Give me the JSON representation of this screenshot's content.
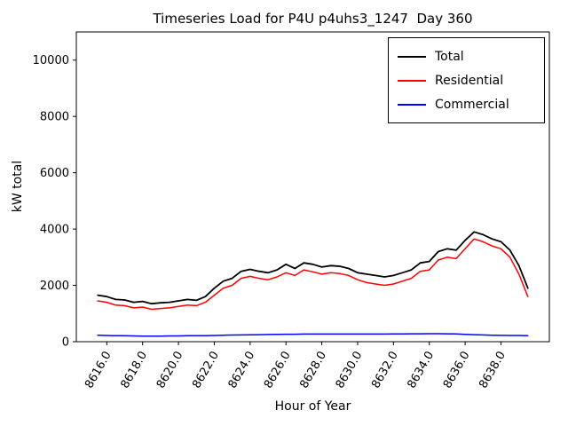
{
  "title": "Timeseries Load for P4U p4uhs3_1247  Day 360",
  "axes": {
    "xlabel": "Hour of Year",
    "ylabel": "kW total"
  },
  "legend": {
    "position": "upper right",
    "entries": [
      {
        "label": "Total",
        "color": "#000000"
      },
      {
        "label": "Residential",
        "color": "#ff0000"
      },
      {
        "label": "Commercial",
        "color": "#0000ff"
      }
    ]
  },
  "chart_data": {
    "type": "line",
    "title": "Timeseries Load for P4U p4uhs3_1247  Day 360",
    "xlabel": "Hour of Year",
    "ylabel": "kW total",
    "grid": false,
    "legend_position": "upper right",
    "xlim": [
      8614.3,
      8640.7
    ],
    "ylim": [
      0,
      11000
    ],
    "xticks": [
      8616,
      8618,
      8620,
      8622,
      8624,
      8626,
      8628,
      8630,
      8632,
      8634,
      8636,
      8638
    ],
    "xtick_labels": [
      "8616.0",
      "8618.0",
      "8620.0",
      "8622.0",
      "8624.0",
      "8626.0",
      "8628.0",
      "8630.0",
      "8632.0",
      "8634.0",
      "8636.0",
      "8638.0"
    ],
    "yticks": [
      0,
      2000,
      4000,
      6000,
      8000,
      10000
    ],
    "ytick_labels": [
      "0",
      "2000",
      "4000",
      "6000",
      "8000",
      "10000"
    ],
    "x": [
      8615.5,
      8616.0,
      8616.5,
      8617.0,
      8617.5,
      8618.0,
      8618.5,
      8619.0,
      8619.5,
      8620.0,
      8620.5,
      8621.0,
      8621.5,
      8622.0,
      8622.5,
      8623.0,
      8623.5,
      8624.0,
      8624.5,
      8625.0,
      8625.5,
      8626.0,
      8626.5,
      8627.0,
      8627.5,
      8628.0,
      8628.5,
      8629.0,
      8629.5,
      8630.0,
      8630.5,
      8631.0,
      8631.5,
      8632.0,
      8632.5,
      8633.0,
      8633.5,
      8634.0,
      8634.5,
      8635.0,
      8635.5,
      8636.0,
      8636.5,
      8637.0,
      8637.5,
      8638.0,
      8638.5,
      8639.0,
      8639.5
    ],
    "series": [
      {
        "name": "Total",
        "color": "#000000",
        "values": [
          1650,
          1600,
          1500,
          1480,
          1400,
          1430,
          1350,
          1380,
          1400,
          1450,
          1500,
          1470,
          1600,
          1900,
          2150,
          2250,
          2500,
          2570,
          2500,
          2450,
          2550,
          2750,
          2600,
          2800,
          2750,
          2650,
          2700,
          2680,
          2600,
          2450,
          2400,
          2350,
          2300,
          2350,
          2450,
          2550,
          2800,
          2850,
          3200,
          3300,
          3250,
          3600,
          3900,
          3800,
          3650,
          3550,
          3250,
          2700,
          1900
        ]
      },
      {
        "name": "Residential",
        "color": "#ff0000",
        "values": [
          1450,
          1400,
          1300,
          1280,
          1200,
          1230,
          1150,
          1180,
          1200,
          1250,
          1300,
          1280,
          1400,
          1650,
          1900,
          2000,
          2250,
          2320,
          2250,
          2200,
          2300,
          2450,
          2350,
          2550,
          2480,
          2400,
          2450,
          2420,
          2350,
          2200,
          2100,
          2050,
          2000,
          2050,
          2150,
          2250,
          2500,
          2550,
          2900,
          3000,
          2950,
          3300,
          3650,
          3550,
          3400,
          3300,
          3000,
          2400,
          1600
        ]
      },
      {
        "name": "Commercial",
        "color": "#0000ff",
        "values": [
          230,
          220,
          210,
          210,
          205,
          200,
          200,
          200,
          205,
          205,
          210,
          210,
          215,
          220,
          230,
          235,
          240,
          245,
          250,
          255,
          260,
          265,
          265,
          270,
          270,
          270,
          270,
          270,
          270,
          270,
          270,
          270,
          270,
          275,
          275,
          280,
          280,
          285,
          285,
          280,
          275,
          260,
          250,
          240,
          230,
          225,
          220,
          220,
          215
        ]
      }
    ]
  }
}
